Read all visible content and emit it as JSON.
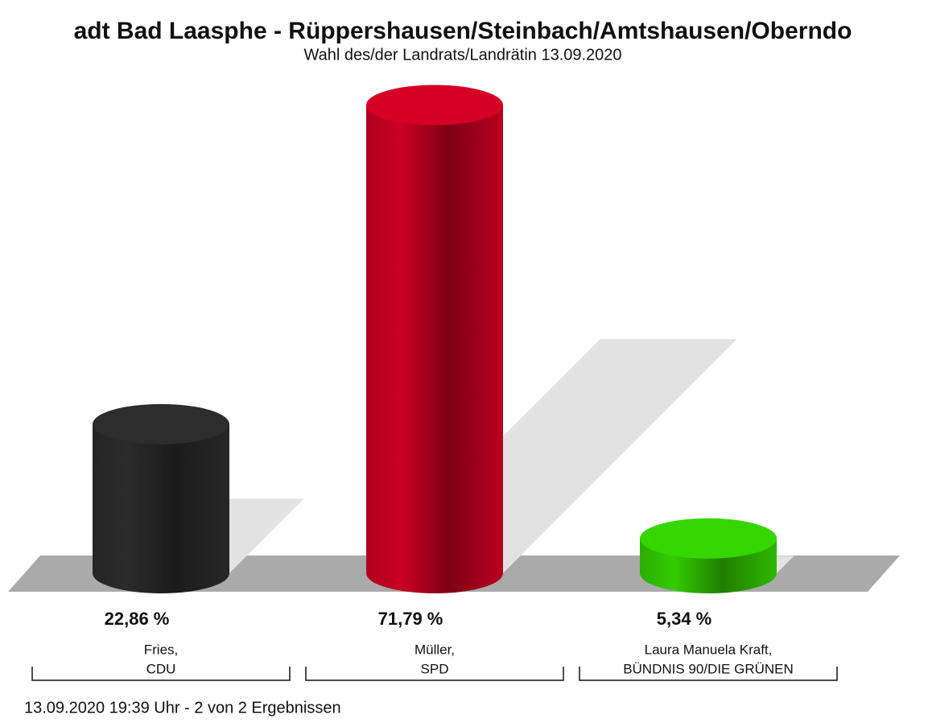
{
  "chart_data": {
    "type": "bar3d",
    "title": "adt Bad Laasphe - Rüppershausen/Steinbach/Amtshausen/Oberndo",
    "subtitle": "Wahl des/der Landrats/Landrätin 13.09.2020",
    "categories": [
      [
        "Fries,",
        "CDU"
      ],
      [
        "Müller,",
        "SPD"
      ],
      [
        "Laura Manuela Kraft,",
        "BÜNDNIS 90/DIE GRÜNEN"
      ]
    ],
    "values": [
      22.86,
      71.79,
      5.34
    ],
    "value_labels": [
      "22,86 %",
      "71,79 %",
      "5,34 %"
    ],
    "colors": [
      "#2b2b2b",
      "#cc0022",
      "#33cc00"
    ],
    "footer": "13.09.2020 19:39 Uhr - 2 von 2 Ergebnissen"
  }
}
